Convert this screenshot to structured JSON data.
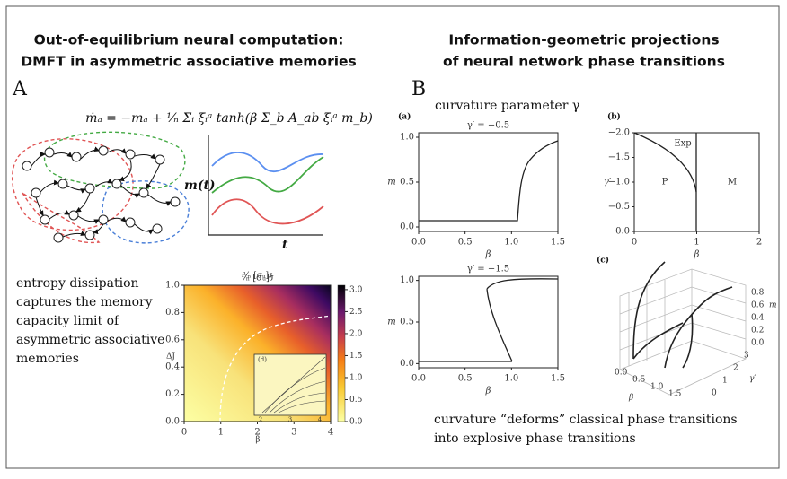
{
  "left_title": [
    "Out-of-equilibrium neural computation:",
    "DMFT in asymmetric associative memories"
  ],
  "right_title": [
    "Information-geometric projections",
    "of neural network phase transitions"
  ],
  "panel_a": {
    "label": "A",
    "equation": "ṁₐ = −mₐ + ¹⁄ₙ Σᵢ ξᵢᵃ tanh(β Σ_b A_ab ξᵢᵃ m_b)",
    "trace_ylabel": "m(t)",
    "trace_xlabel": "t",
    "caption": [
      "entropy dissipation",
      "captures the memory",
      "capacity limit of",
      "asymmetric associative",
      "memories"
    ],
    "heatmap": {
      "title": "¹⁄ₙ [σᵤ]ᴊ",
      "xlabel": "β",
      "ylabel": "ΔJ",
      "xlim": [
        0,
        4
      ],
      "ylim": [
        0,
        1
      ],
      "xticks": [
        0,
        1,
        2,
        3,
        4
      ],
      "yticks": [
        {
          "value": 0,
          "label": "0.0"
        },
        {
          "value": 0.2,
          "label": "0.2"
        },
        {
          "value": 0.4,
          "label": "0.4"
        },
        {
          "value": 0.6,
          "label": "0.6"
        },
        {
          "value": 0.8,
          "label": "0.8"
        },
        {
          "value": 1,
          "label": "1.0"
        }
      ],
      "colorbar_lim": [
        0,
        3.1
      ],
      "colorbar_ticks": [
        {
          "value": 0,
          "label": "0.0"
        },
        {
          "value": 0.5,
          "label": "0.5"
        },
        {
          "value": 1,
          "label": "1.0"
        },
        {
          "value": 1.5,
          "label": "1.5"
        },
        {
          "value": 2,
          "label": "2.0"
        },
        {
          "value": 2.5,
          "label": "2.5"
        },
        {
          "value": 3,
          "label": "3.0"
        }
      ],
      "inset_label": "(d)",
      "inset_xticks": [
        2,
        3,
        4
      ]
    }
  },
  "panel_b": {
    "label": "B",
    "heading": "curvature parameter γ",
    "plot_a": {
      "label": "(a)",
      "title": "γ′ = −0.5",
      "xlabel": "β",
      "ylabel": "m",
      "xlim": [
        0,
        1.5
      ],
      "ylim": [
        -0.05,
        1.05
      ],
      "xticks": [
        {
          "value": 0,
          "label": "0.0"
        },
        {
          "value": 0.5,
          "label": "0.5"
        },
        {
          "value": 1,
          "label": "1.0"
        },
        {
          "value": 1.5,
          "label": "1.5"
        }
      ],
      "yticks": [
        {
          "value": 0,
          "label": "0.0"
        },
        {
          "value": 0.5,
          "label": "0.5"
        },
        {
          "value": 1,
          "label": "1.0"
        }
      ]
    },
    "plot_a2": {
      "title": "γ′ = −1.5",
      "xlabel": "β",
      "ylabel": "m",
      "xlim": [
        0,
        1.5
      ],
      "ylim": [
        -0.05,
        1.05
      ],
      "xticks": [
        {
          "value": 0,
          "label": "0.0"
        },
        {
          "value": 0.5,
          "label": "0.5"
        },
        {
          "value": 1,
          "label": "1.0"
        },
        {
          "value": 1.5,
          "label": "1.5"
        }
      ],
      "yticks": [
        {
          "value": 0,
          "label": "0.0"
        },
        {
          "value": 0.5,
          "label": "0.5"
        },
        {
          "value": 1,
          "label": "1.0"
        }
      ]
    },
    "plot_b": {
      "label": "(b)",
      "xlabel": "β",
      "ylabel": "γ′",
      "regions": [
        "Exp",
        "P",
        "M"
      ],
      "xlim": [
        0,
        2
      ],
      "ylim": [
        0,
        -2
      ],
      "xticks": [
        0,
        1,
        2
      ],
      "yticks": [
        {
          "value": -2,
          "label": "−2.0"
        },
        {
          "value": -1.5,
          "label": "−1.5"
        },
        {
          "value": -1,
          "label": "−1.0"
        },
        {
          "value": -0.5,
          "label": "−0.5"
        },
        {
          "value": 0,
          "label": "0.0"
        }
      ]
    },
    "plot_c": {
      "label": "(c)",
      "z_label": "m",
      "z_ticks": [
        "0.8",
        "0.6",
        "0.4",
        "0.2",
        "0.0"
      ],
      "x_label": "β",
      "x_ticks": [
        "0.0",
        "0.5",
        "1.0",
        "1.5"
      ],
      "y_label": "γ′",
      "y_ticks": [
        "0",
        "1",
        "2",
        "3"
      ]
    },
    "caption": [
      "curvature “deforms” classical phase transitions",
      "into explosive phase transitions"
    ]
  }
}
